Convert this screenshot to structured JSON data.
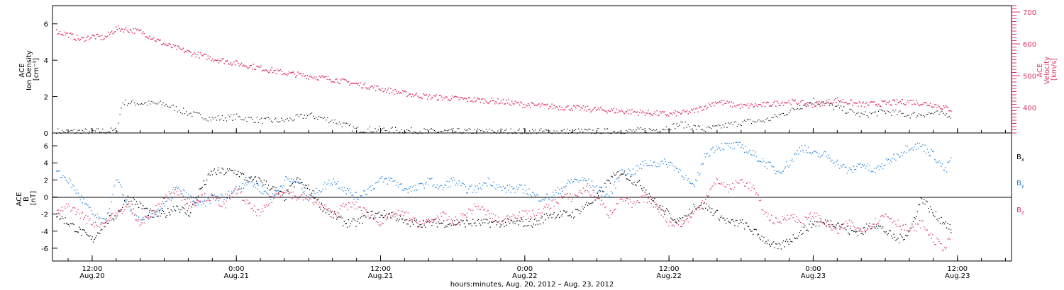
{
  "colors": {
    "black": "#000000",
    "pink": "#e0305f",
    "blue": "#1a7fe0"
  },
  "x_axis": {
    "title": "hours:minutes, Aug. 20, 2012 – Aug. 23, 2012",
    "tick_labels": [
      {
        "time": "12:00",
        "date": "Aug.20",
        "hours": 12
      },
      {
        "time": "0:00",
        "date": "Aug.21",
        "hours": 24
      },
      {
        "time": "12:00",
        "date": "Aug.21",
        "hours": 36
      },
      {
        "time": "0:00",
        "date": "Aug.22",
        "hours": 48
      },
      {
        "time": "12:00",
        "date": "Aug.22",
        "hours": 60
      },
      {
        "time": "0:00",
        "date": "Aug.23",
        "hours": 72
      },
      {
        "time": "12:00",
        "date": "Aug.23",
        "hours": 84
      }
    ],
    "range_hours": [
      8.7,
      88.5
    ]
  },
  "chart_data": [
    {
      "type": "scatter",
      "panel": "top",
      "ylabel_left": [
        "ACE",
        "Ion Density",
        "[cm⁻³]"
      ],
      "ylabel_right": [
        "ACE",
        "Velocity",
        "[km/s]"
      ],
      "ylim_left": [
        0,
        7
      ],
      "yticks_left": [
        0,
        2,
        4,
        6
      ],
      "ylim_right": [
        320,
        720
      ],
      "yticks_right": [
        400,
        500,
        600,
        700
      ],
      "x_unit": "hours since Aug.20 00:00",
      "series": [
        {
          "axis": "left",
          "color": "black",
          "x": [
            9,
            10,
            12,
            14,
            14.5,
            18,
            20,
            22,
            24,
            26,
            28,
            30,
            32,
            34,
            36,
            40,
            44,
            48,
            52,
            56,
            59,
            61,
            63,
            66,
            68,
            70,
            72,
            74,
            76,
            78,
            80,
            82,
            83.5
          ],
          "y": [
            0.1,
            0.1,
            0.1,
            0.15,
            1.7,
            1.6,
            1.1,
            0.8,
            0.9,
            0.7,
            0.7,
            1.0,
            0.7,
            0.2,
            0.2,
            0.1,
            0.1,
            0.1,
            0.1,
            0.1,
            0.2,
            0.5,
            0.2,
            0.6,
            0.7,
            1.2,
            1.8,
            1.4,
            1.0,
            1.2,
            1.0,
            1.1,
            1.0
          ]
        },
        {
          "axis": "right",
          "color": "pink",
          "x": [
            9,
            10,
            11,
            12,
            13,
            14,
            15,
            16,
            18,
            20,
            22,
            24,
            26,
            28,
            30,
            32,
            34,
            36,
            38,
            40,
            42,
            44,
            46,
            48,
            50,
            52,
            54,
            56,
            58,
            60,
            62,
            64,
            66,
            68,
            70,
            72,
            74,
            76,
            78,
            80,
            82,
            83.5
          ],
          "y": [
            640,
            630,
            615,
            625,
            620,
            650,
            645,
            640,
            600,
            575,
            555,
            540,
            525,
            510,
            500,
            490,
            475,
            460,
            445,
            435,
            430,
            425,
            420,
            410,
            405,
            400,
            395,
            390,
            385,
            380,
            390,
            420,
            405,
            410,
            420,
            410,
            425,
            410,
            415,
            420,
            410,
            395
          ]
        }
      ]
    },
    {
      "type": "scatter",
      "panel": "bottom",
      "ylabel": [
        "ACE",
        "B",
        "[nT]"
      ],
      "ylim": [
        -7.5,
        7.5
      ],
      "yticks": [
        -6,
        -4,
        -2,
        0,
        2,
        4,
        6
      ],
      "x_unit": "hours since Aug.20 00:00",
      "legend": [
        {
          "label": "B",
          "subscript": "x",
          "color": "black"
        },
        {
          "label": "B",
          "subscript": "y",
          "color": "blue"
        },
        {
          "label": "B",
          "subscript": "z",
          "color": "pink"
        }
      ],
      "series": [
        {
          "name": "Bx",
          "color": "black",
          "x": [
            9,
            10,
            11,
            12,
            13,
            14,
            15,
            16,
            17,
            18,
            19,
            20,
            21,
            22,
            23,
            24,
            25,
            26,
            27,
            28,
            29,
            30,
            31,
            32,
            33,
            34,
            35,
            36,
            37,
            38,
            39,
            40,
            41,
            42,
            43,
            44,
            45,
            46,
            47,
            48,
            49,
            50,
            51,
            52,
            53,
            54,
            55,
            56,
            57,
            58,
            59,
            60,
            61,
            62,
            63,
            64,
            65,
            66,
            67,
            68,
            69,
            70,
            71,
            72,
            73,
            74,
            75,
            76,
            77,
            78,
            79,
            80,
            81,
            82,
            83,
            83.5
          ],
          "y": [
            -2,
            -3,
            -4,
            -5,
            -3,
            -2,
            0,
            -1,
            -2,
            -2,
            -1,
            -2,
            1,
            3,
            3,
            3,
            2,
            2,
            1,
            0,
            2,
            1,
            -1,
            -2,
            -3,
            -3,
            -2,
            -2,
            -2,
            -3,
            -3,
            -3,
            -3,
            -3,
            -3,
            -3,
            -3,
            -3,
            -3,
            -3,
            -3,
            -2,
            -2,
            -2,
            -1,
            0,
            2,
            3,
            2,
            1,
            -1,
            -2,
            -3,
            -1,
            -1,
            -2,
            -3,
            -3,
            -4,
            -5,
            -6,
            -5,
            -4,
            -3,
            -3,
            -3,
            -4,
            -4,
            -3,
            -4,
            -5,
            -4,
            0,
            -2,
            -3,
            -4
          ]
        },
        {
          "name": "By",
          "color": "blue",
          "x": [
            9,
            10,
            11,
            12,
            13,
            14,
            15,
            16,
            17,
            18,
            19,
            20,
            21,
            22,
            23,
            24,
            25,
            26,
            27,
            28,
            29,
            30,
            31,
            32,
            33,
            34,
            35,
            36,
            37,
            38,
            39,
            40,
            41,
            42,
            43,
            44,
            45,
            46,
            47,
            48,
            49,
            50,
            51,
            52,
            53,
            54,
            55,
            56,
            57,
            58,
            59,
            60,
            61,
            62,
            63,
            64,
            65,
            66,
            67,
            68,
            69,
            70,
            71,
            72,
            73,
            74,
            75,
            76,
            77,
            78,
            79,
            80,
            81,
            82,
            83,
            83.5
          ],
          "y": [
            3,
            2,
            0,
            -2,
            -3,
            2,
            -1,
            -3,
            -2,
            -1,
            1,
            0,
            -1,
            0,
            0,
            1,
            2,
            1,
            0,
            2,
            2,
            0,
            1,
            2,
            1,
            0,
            1,
            2,
            2,
            1,
            1,
            2,
            1,
            2,
            1,
            1,
            2,
            1,
            1,
            1,
            0,
            0,
            1,
            2,
            2,
            1,
            0,
            3,
            3,
            4,
            4,
            4,
            3,
            1,
            5,
            6,
            6,
            6,
            5,
            4,
            3,
            4,
            6,
            5,
            5,
            4,
            3,
            4,
            3,
            4,
            5,
            6,
            6,
            5,
            3,
            5
          ]
        },
        {
          "name": "Bz",
          "color": "pink",
          "x": [
            9,
            10,
            11,
            12,
            13,
            14,
            15,
            16,
            17,
            18,
            19,
            20,
            21,
            22,
            23,
            24,
            25,
            26,
            27,
            28,
            29,
            30,
            31,
            32,
            33,
            34,
            35,
            36,
            37,
            38,
            39,
            40,
            41,
            42,
            43,
            44,
            45,
            46,
            47,
            48,
            49,
            50,
            51,
            52,
            53,
            54,
            55,
            56,
            57,
            58,
            59,
            60,
            61,
            62,
            63,
            64,
            65,
            66,
            67,
            68,
            69,
            70,
            71,
            72,
            73,
            74,
            75,
            76,
            77,
            78,
            79,
            80,
            81,
            82,
            83,
            83.5
          ],
          "y": [
            -2,
            -1,
            -2,
            -3,
            -3,
            -2,
            -1,
            -3,
            -2,
            0,
            1,
            -1,
            0,
            0,
            -1,
            1,
            -1,
            -2,
            0,
            1,
            0,
            0,
            -1,
            -2,
            -1,
            -1,
            -2,
            -3,
            -2,
            -2,
            -3,
            -3,
            -2,
            -3,
            -2,
            -1,
            -2,
            -3,
            -2,
            -2,
            -2,
            -1,
            0,
            0,
            1,
            0,
            -2,
            0,
            -1,
            0,
            -1,
            -3,
            -3,
            -2,
            0,
            2,
            1,
            2,
            1,
            -2,
            -3,
            -2,
            -3,
            -2,
            -3,
            -4,
            -3,
            -4,
            -3,
            -2,
            -3,
            -4,
            -3,
            -5,
            -6,
            -4
          ]
        }
      ]
    }
  ]
}
